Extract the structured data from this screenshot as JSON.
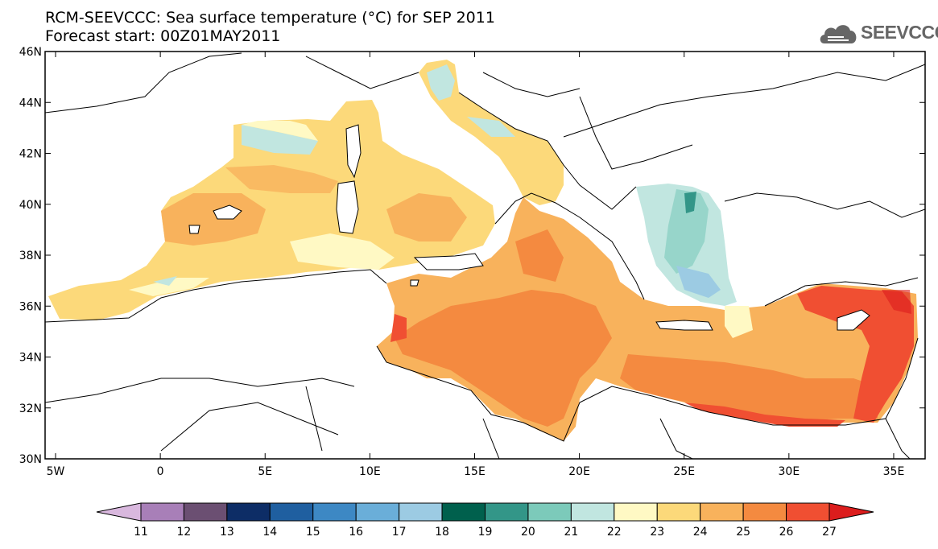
{
  "header": {
    "title_line1": "RCM-SEEVCCC: Sea surface temperature (°C) for SEP 2011",
    "title_line2": "Forecast start: 00Z01MAY2011"
  },
  "logo": {
    "text": "SEEVCCC",
    "icon": "cloud-logo-icon"
  },
  "map": {
    "lon_range": [
      -5.5,
      36.5
    ],
    "lat_range": [
      30,
      46
    ],
    "x_ticks": [
      {
        "value": -5,
        "label": "5W"
      },
      {
        "value": 0,
        "label": "0"
      },
      {
        "value": 5,
        "label": "5E"
      },
      {
        "value": 10,
        "label": "10E"
      },
      {
        "value": 15,
        "label": "15E"
      },
      {
        "value": 20,
        "label": "20E"
      },
      {
        "value": 25,
        "label": "25E"
      },
      {
        "value": 30,
        "label": "30E"
      },
      {
        "value": 35,
        "label": "35E"
      }
    ],
    "y_ticks": [
      {
        "value": 30,
        "label": "30N"
      },
      {
        "value": 32,
        "label": "32N"
      },
      {
        "value": 34,
        "label": "34N"
      },
      {
        "value": 36,
        "label": "36N"
      },
      {
        "value": 38,
        "label": "38N"
      },
      {
        "value": 40,
        "label": "40N"
      },
      {
        "value": 42,
        "label": "42N"
      },
      {
        "value": 44,
        "label": "44N"
      },
      {
        "value": 46,
        "label": "46N"
      }
    ]
  },
  "colorbar": {
    "labels": [
      "11",
      "12",
      "13",
      "14",
      "15",
      "16",
      "17",
      "18",
      "19",
      "20",
      "21",
      "22",
      "23",
      "24",
      "25",
      "26",
      "27"
    ],
    "colors": [
      "#d9b8de",
      "#a87fb8",
      "#6b4f72",
      "#0d2d66",
      "#1f5fa0",
      "#3d88c4",
      "#6aaed9",
      "#9ccbe3",
      "#00604d",
      "#339688",
      "#7ccaba",
      "#c1e6e0",
      "#fff9c4",
      "#fcd97a",
      "#f8b25c",
      "#f48a40",
      "#f04f32",
      "#dc1d1d"
    ]
  }
}
